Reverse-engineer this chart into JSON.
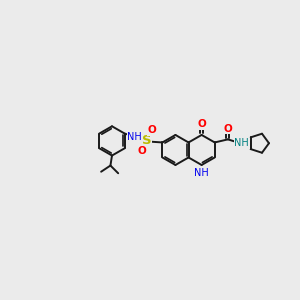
{
  "bg": "#ebebeb",
  "bc": "#1a1a1a",
  "red": "#ff0000",
  "blue": "#0000ee",
  "yellow": "#bbbb00",
  "teal": "#008080",
  "lw": 1.4,
  "figsize": [
    3.0,
    3.0
  ],
  "dpi": 100,
  "xlim": [
    0,
    300
  ],
  "ylim": [
    0,
    300
  ]
}
